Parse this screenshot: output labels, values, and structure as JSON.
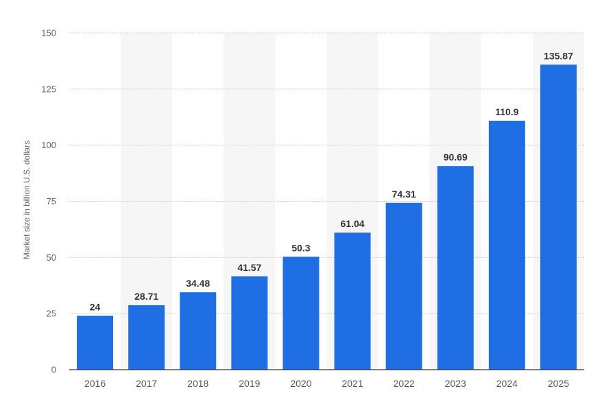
{
  "colors": {
    "bar": "#1f6ee3",
    "band": "#f6f6f6",
    "grid": "#bfbfbf",
    "axis": "#333333"
  },
  "chart_data": {
    "type": "bar",
    "categories": [
      "2016",
      "2017",
      "2018",
      "2019",
      "2020",
      "2021",
      "2022",
      "2023",
      "2024",
      "2025"
    ],
    "values": [
      24,
      28.71,
      34.48,
      41.57,
      50.3,
      61.04,
      74.31,
      90.69,
      110.9,
      135.87
    ],
    "value_labels": [
      "24",
      "28.71",
      "34.48",
      "41.57",
      "50.3",
      "61.04",
      "74.31",
      "90.69",
      "110.9",
      "135.87"
    ],
    "title": "",
    "xlabel": "",
    "ylabel": "Market size in billion U.S. dollars",
    "ylim": [
      0,
      150
    ],
    "yticks": [
      0,
      25,
      50,
      75,
      100,
      125,
      150
    ],
    "grid": true,
    "legend": "none"
  }
}
